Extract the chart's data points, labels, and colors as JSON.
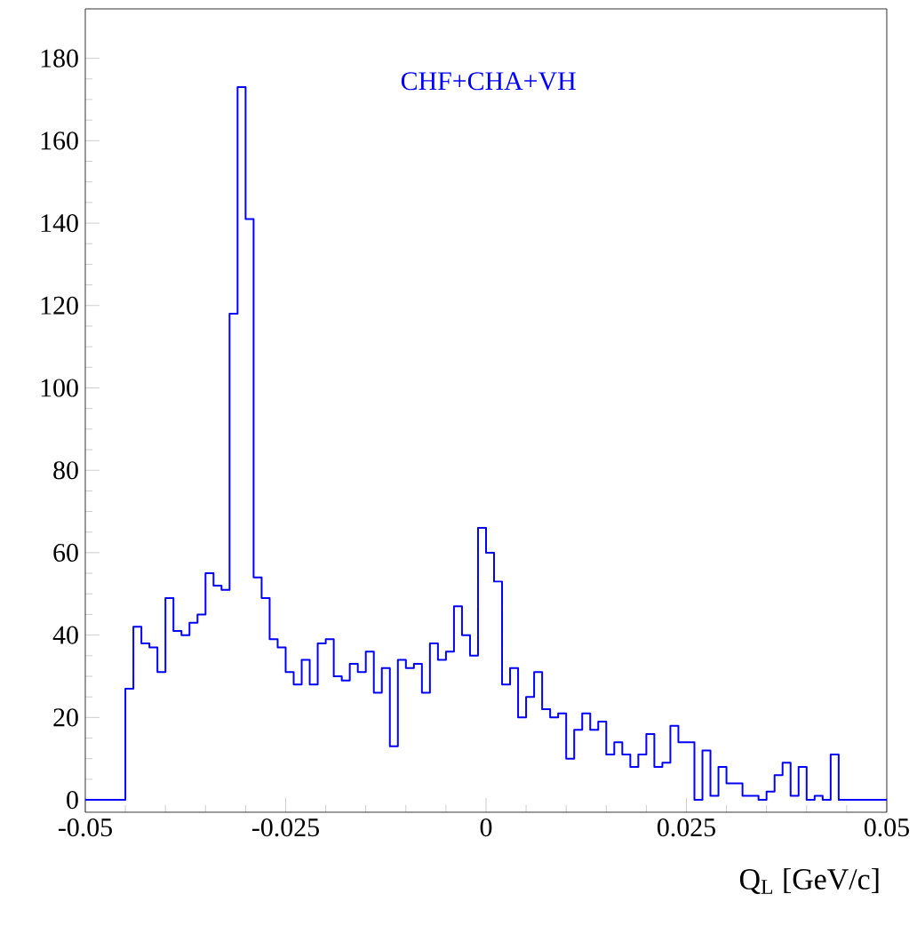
{
  "chart_data": {
    "type": "histogram",
    "xlabel": "Q$_{L}$ [GeV/c]",
    "annotations": [
      "CHF+CHA+VH"
    ],
    "color": "#0000ff",
    "bins": [
      -0.05,
      -0.049,
      -0.048,
      -0.047,
      -0.046,
      -0.045,
      -0.044,
      -0.043,
      -0.042,
      -0.041,
      -0.04,
      -0.039,
      -0.038,
      -0.037,
      -0.036,
      -0.035,
      -0.034,
      -0.033,
      -0.032,
      -0.031,
      -0.03,
      -0.029,
      -0.028,
      -0.027,
      -0.026,
      -0.025,
      -0.024,
      -0.023,
      -0.022,
      -0.021,
      -0.02,
      -0.019,
      -0.018,
      -0.017,
      -0.016,
      -0.015,
      -0.014,
      -0.013,
      -0.012,
      -0.011,
      -0.01,
      -0.009,
      -0.008,
      -0.007,
      -0.006,
      -0.005,
      -0.004,
      -0.003,
      -0.002,
      -0.001,
      0,
      0.001,
      0.002,
      0.003,
      0.004,
      0.005,
      0.006,
      0.007,
      0.008,
      0.009,
      0.01,
      0.011,
      0.012,
      0.013,
      0.014,
      0.015,
      0.016,
      0.017,
      0.018,
      0.019,
      0.02,
      0.021,
      0.022,
      0.023,
      0.024,
      0.025,
      0.026,
      0.027,
      0.028,
      0.029,
      0.03,
      0.031,
      0.032,
      0.033,
      0.034,
      0.035,
      0.036,
      0.037,
      0.038,
      0.039,
      0.04,
      0.041,
      0.042,
      0.043,
      0.044,
      0.045,
      0.046,
      0.047,
      0.048,
      0.049,
      0.05
    ],
    "values": [
      0,
      0,
      0,
      0,
      0,
      27,
      42,
      38,
      37,
      31,
      49,
      41,
      40,
      43,
      45,
      55,
      52,
      51,
      118,
      173,
      141,
      54,
      49,
      39,
      37,
      31,
      28,
      34,
      28,
      38,
      39,
      30,
      29,
      33,
      31,
      36,
      26,
      32,
      13,
      34,
      32,
      33,
      26,
      38,
      34,
      36,
      47,
      40,
      35,
      66,
      60,
      53,
      28,
      32,
      20,
      25,
      31,
      22,
      20,
      21,
      10,
      17,
      21,
      17,
      19,
      11,
      14,
      11,
      8,
      11,
      16,
      8,
      9,
      18,
      14,
      14,
      0,
      12,
      1,
      8,
      4,
      4,
      1,
      1,
      0,
      2,
      6,
      9,
      1,
      8,
      0,
      1,
      0,
      11,
      0,
      0,
      0,
      0,
      0,
      0
    ],
    "xlim": [
      -0.05,
      0.05
    ],
    "xticks": [
      -0.05,
      -0.025,
      0,
      0.025,
      0.05
    ],
    "ylim": [
      -3,
      192
    ],
    "yticks": [
      0,
      20,
      40,
      60,
      80,
      100,
      120,
      140,
      160,
      180
    ],
    "grid": false
  }
}
